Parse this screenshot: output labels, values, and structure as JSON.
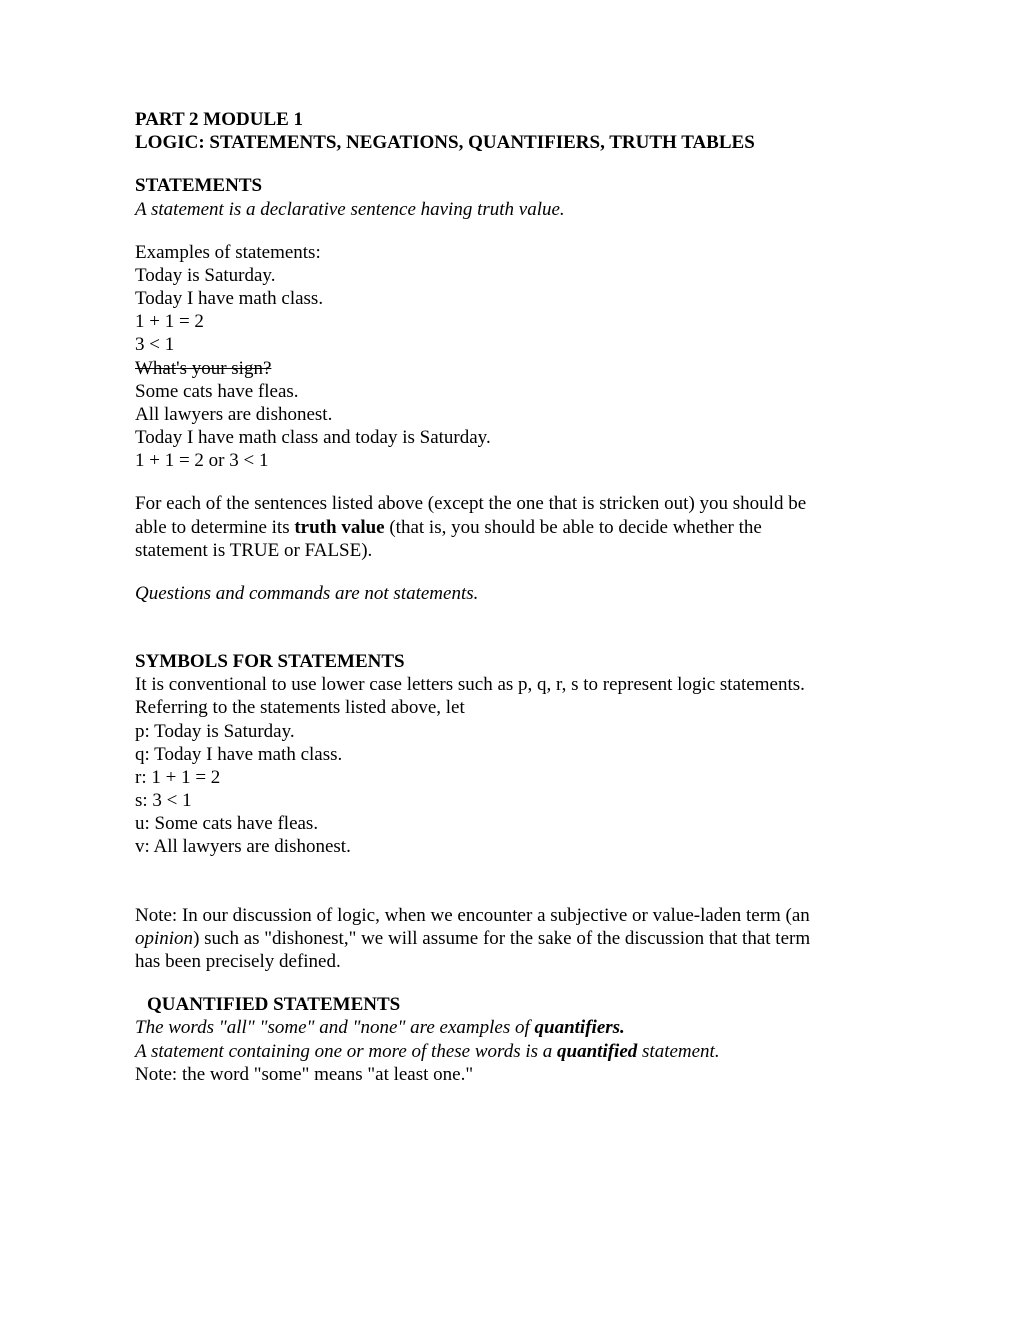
{
  "header": {
    "part": "PART 2 MODULE 1",
    "title": "LOGIC: STATEMENTS, NEGATIONS, QUANTIFIERS, TRUTH TABLES"
  },
  "statements": {
    "heading": "STATEMENTS",
    "definition": "A statement is a declarative sentence having truth value.",
    "examples_label": "Examples of statements:",
    "ex1": "Today is Saturday.",
    "ex2": "Today I have math class.",
    "ex3": "1 + 1 = 2",
    "ex4": "3 < 1",
    "ex5_strike": "What's your sign?",
    "ex6": "Some cats have fleas.",
    "ex7": "All lawyers are dishonest.",
    "ex8": "Today I have math class and today is Saturday.",
    "ex9": "1 + 1 = 2 or 3 < 1",
    "truth_a": "For each of the sentences listed above (except the one that is stricken out) you should be",
    "truth_b1": "able to determine its ",
    "truth_b2": "truth value",
    "truth_b3": " (that is, you should be able to decide whether the",
    "truth_c": "statement is TRUE or FALSE).",
    "not_statements": "Questions and commands are not statements."
  },
  "symbols": {
    "heading": "SYMBOLS FOR STATEMENTS",
    "line1": "It is conventional to use lower case letters such as p, q, r, s to represent logic statements.",
    "line2": "Referring to the statements listed above, let",
    "p": "p: Today is Saturday.",
    "q": "q: Today I have math class.",
    "r": "r: 1 + 1 = 2",
    "s": "s: 3 < 1",
    "u": "u: Some cats have fleas.",
    "v": "v: All lawyers are dishonest.",
    "note_a": "Note: In our discussion of logic, when we encounter a subjective or value-laden term (an",
    "note_b1": "opinion",
    "note_b2": ") such as \"dishonest,\" we will assume for the sake of the discussion that that term",
    "note_c": "has been precisely defined."
  },
  "quantified": {
    "heading": "QUANTIFIED STATEMENTS",
    "line1a": "The words \"all\" \"some\" and \"none\" are examples of ",
    "line1b": "quantifiers.",
    "line2a": "A statement containing one or more of these words is a ",
    "line2b": "quantified",
    "line2c": " statement.",
    "line3": "Note: the word \"some\" means \"at least one.\""
  }
}
